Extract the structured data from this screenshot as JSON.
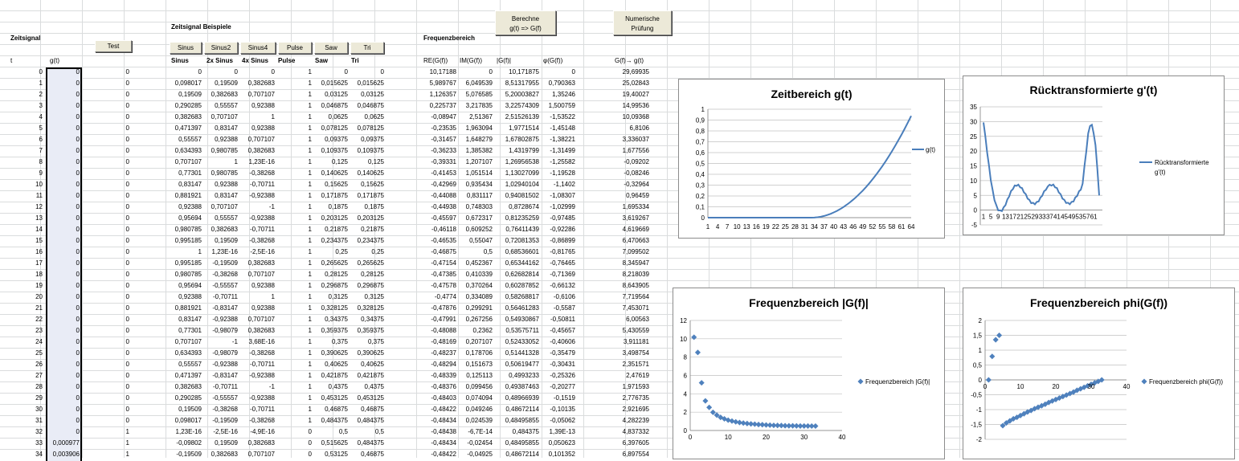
{
  "labels": {
    "zeitsignal": "Zeitsignal",
    "zeitsignal_beispiele": "Zeitsignal Beispiele",
    "frequenzbereich": "Frequenzbereich",
    "t_header": "t",
    "g_header": "g(t)"
  },
  "buttons": {
    "test": "Test",
    "sinus": "Sinus",
    "sinus2": "Sinus2",
    "sinus4": "Sinus4",
    "pulse": "Pulse",
    "saw": "Saw",
    "tri": "Tri",
    "berechne_line1": "Berechne",
    "berechne_line2": "g(t) => G(f)",
    "numerische_line1": "Numerische",
    "numerische_line2": "Prüfung"
  },
  "example_headers": [
    "Sinus",
    "2x Sinus",
    "4x Sinus",
    "Pulse",
    "Saw",
    "Tri"
  ],
  "freq_headers": [
    "RE(G(f))",
    "IM(G(f))",
    "|G(f)|",
    "φ(G(f))",
    "G(f)→ g(t)"
  ],
  "rows": [
    [
      "0",
      "0",
      "0",
      "0",
      "0",
      "0",
      "1",
      "0",
      "0",
      "10,17188",
      "0",
      "10,171875",
      "0",
      "29,69935"
    ],
    [
      "1",
      "0",
      "0",
      "0,098017",
      "0,19509",
      "0,382683",
      "1",
      "0,015625",
      "0,015625",
      "5,989767",
      "6,049539",
      "8,51317955",
      "0,790363",
      "25,02843"
    ],
    [
      "2",
      "0",
      "0",
      "0,19509",
      "0,382683",
      "0,707107",
      "1",
      "0,03125",
      "0,03125",
      "1,126357",
      "5,076585",
      "5,20003827",
      "1,35246",
      "19,40027"
    ],
    [
      "3",
      "0",
      "0",
      "0,290285",
      "0,55557",
      "0,92388",
      "1",
      "0,046875",
      "0,046875",
      "0,225737",
      "3,217835",
      "3,22574309",
      "1,500759",
      "14,99536"
    ],
    [
      "4",
      "0",
      "0",
      "0,382683",
      "0,707107",
      "1",
      "1",
      "0,0625",
      "0,0625",
      "-0,08947",
      "2,51367",
      "2,51526139",
      "-1,53522",
      "10,09368"
    ],
    [
      "5",
      "0",
      "0",
      "0,471397",
      "0,83147",
      "0,92388",
      "1",
      "0,078125",
      "0,078125",
      "-0,23535",
      "1,963094",
      "1,9771514",
      "-1,45148",
      "6,8106"
    ],
    [
      "6",
      "0",
      "0",
      "0,55557",
      "0,92388",
      "0,707107",
      "1",
      "0,09375",
      "0,09375",
      "-0,31457",
      "1,648279",
      "1,67802875",
      "-1,38221",
      "3,336037"
    ],
    [
      "7",
      "0",
      "0",
      "0,634393",
      "0,980785",
      "0,382683",
      "1",
      "0,109375",
      "0,109375",
      "-0,36233",
      "1,385382",
      "1,4319799",
      "-1,31499",
      "1,677556"
    ],
    [
      "8",
      "0",
      "0",
      "0,707107",
      "1",
      "1,23E-16",
      "1",
      "0,125",
      "0,125",
      "-0,39331",
      "1,207107",
      "1,26956538",
      "-1,25582",
      "-0,09202"
    ],
    [
      "9",
      "0",
      "0",
      "0,77301",
      "0,980785",
      "-0,38268",
      "1",
      "0,140625",
      "0,140625",
      "-0,41453",
      "1,051514",
      "1,13027099",
      "-1,19528",
      "-0,08246"
    ],
    [
      "10",
      "0",
      "0",
      "0,83147",
      "0,92388",
      "-0,70711",
      "1",
      "0,15625",
      "0,15625",
      "-0,42969",
      "0,935434",
      "1,02940104",
      "-1,1402",
      "-0,32964"
    ],
    [
      "11",
      "0",
      "0",
      "0,881921",
      "0,83147",
      "-0,92388",
      "1",
      "0,171875",
      "0,171875",
      "-0,44088",
      "0,831117",
      "0,94081502",
      "-1,08307",
      "0,96459"
    ],
    [
      "12",
      "0",
      "0",
      "0,92388",
      "0,707107",
      "-1",
      "1",
      "0,1875",
      "0,1875",
      "-0,44938",
      "0,748303",
      "0,8728674",
      "-1,02999",
      "1,695334"
    ],
    [
      "13",
      "0",
      "0",
      "0,95694",
      "0,55557",
      "-0,92388",
      "1",
      "0,203125",
      "0,203125",
      "-0,45597",
      "0,672317",
      "0,81235259",
      "-0,97485",
      "3,619267"
    ],
    [
      "14",
      "0",
      "0",
      "0,980785",
      "0,382683",
      "-0,70711",
      "1",
      "0,21875",
      "0,21875",
      "-0,46118",
      "0,609252",
      "0,76411439",
      "-0,92286",
      "4,619669"
    ],
    [
      "15",
      "0",
      "0",
      "0,995185",
      "0,19509",
      "-0,38268",
      "1",
      "0,234375",
      "0,234375",
      "-0,46535",
      "0,55047",
      "0,72081353",
      "-0,86899",
      "6,470663"
    ],
    [
      "16",
      "0",
      "0",
      "1",
      "1,23E-16",
      "-2,5E-16",
      "1",
      "0,25",
      "0,25",
      "-0,46875",
      "0,5",
      "0,68536601",
      "-0,81765",
      "7,099502"
    ],
    [
      "17",
      "0",
      "0",
      "0,995185",
      "-0,19509",
      "0,382683",
      "1",
      "0,265625",
      "0,265625",
      "-0,47154",
      "0,452367",
      "0,65344162",
      "-0,76465",
      "8,345947"
    ],
    [
      "18",
      "0",
      "0",
      "0,980785",
      "-0,38268",
      "0,707107",
      "1",
      "0,28125",
      "0,28125",
      "-0,47385",
      "0,410339",
      "0,62682814",
      "-0,71369",
      "8,218039"
    ],
    [
      "19",
      "0",
      "0",
      "0,95694",
      "-0,55557",
      "0,92388",
      "1",
      "0,296875",
      "0,296875",
      "-0,47578",
      "0,370264",
      "0,60287852",
      "-0,66132",
      "8,643905"
    ],
    [
      "20",
      "0",
      "0",
      "0,92388",
      "-0,70711",
      "1",
      "1",
      "0,3125",
      "0,3125",
      "-0,4774",
      "0,334089",
      "0,58268817",
      "-0,6106",
      "7,719564"
    ],
    [
      "21",
      "0",
      "0",
      "0,881921",
      "-0,83147",
      "0,92388",
      "1",
      "0,328125",
      "0,328125",
      "-0,47876",
      "0,299291",
      "0,56461283",
      "-0,5587",
      "7,453071"
    ],
    [
      "22",
      "0",
      "0",
      "0,83147",
      "-0,92388",
      "0,707107",
      "1",
      "0,34375",
      "0,34375",
      "-0,47991",
      "0,267256",
      "0,54930867",
      "-0,50811",
      "6,00563"
    ],
    [
      "23",
      "0",
      "0",
      "0,77301",
      "-0,98079",
      "0,382683",
      "1",
      "0,359375",
      "0,359375",
      "-0,48088",
      "0,2362",
      "0,53575711",
      "-0,45657",
      "5,430559"
    ],
    [
      "24",
      "0",
      "0",
      "0,707107",
      "-1",
      "3,68E-16",
      "1",
      "0,375",
      "0,375",
      "-0,48169",
      "0,207107",
      "0,52433052",
      "-0,40606",
      "3,911181"
    ],
    [
      "25",
      "0",
      "0",
      "0,634393",
      "-0,98079",
      "-0,38268",
      "1",
      "0,390625",
      "0,390625",
      "-0,48237",
      "0,178706",
      "0,51441328",
      "-0,35479",
      "3,498754"
    ],
    [
      "26",
      "0",
      "0",
      "0,55557",
      "-0,92388",
      "-0,70711",
      "1",
      "0,40625",
      "0,40625",
      "-0,48294",
      "0,151673",
      "0,50619477",
      "-0,30431",
      "2,351571"
    ],
    [
      "27",
      "0",
      "0",
      "0,471397",
      "-0,83147",
      "-0,92388",
      "1",
      "0,421875",
      "0,421875",
      "-0,48339",
      "0,125113",
      "0,4993233",
      "-0,25326",
      "2,47619"
    ],
    [
      "28",
      "0",
      "0",
      "0,382683",
      "-0,70711",
      "-1",
      "1",
      "0,4375",
      "0,4375",
      "-0,48376",
      "0,099456",
      "0,49387463",
      "-0,20277",
      "1,971593"
    ],
    [
      "29",
      "0",
      "0",
      "0,290285",
      "-0,55557",
      "-0,92388",
      "1",
      "0,453125",
      "0,453125",
      "-0,48403",
      "0,074094",
      "0,48966939",
      "-0,1519",
      "2,776735"
    ],
    [
      "30",
      "0",
      "0",
      "0,19509",
      "-0,38268",
      "-0,70711",
      "1",
      "0,46875",
      "0,46875",
      "-0,48422",
      "0,049246",
      "0,48672114",
      "-0,10135",
      "2,921695"
    ],
    [
      "31",
      "0",
      "0",
      "0,098017",
      "-0,19509",
      "-0,38268",
      "1",
      "0,484375",
      "0,484375",
      "-0,48434",
      "0,024539",
      "0,48495855",
      "-0,05062",
      "4,282239"
    ],
    [
      "32",
      "0",
      "1",
      "1,23E-16",
      "-2,5E-16",
      "-4,9E-16",
      "0",
      "0,5",
      "0,5",
      "-0,48438",
      "-6,7E-14",
      "0,484375",
      "1,39E-13",
      "4,837332"
    ],
    [
      "33",
      "0,000977",
      "1",
      "-0,09802",
      "0,19509",
      "0,382683",
      "0",
      "0,515625",
      "0,484375",
      "-0,48434",
      "-0,02454",
      "0,48495855",
      "0,050623",
      "6,397605"
    ],
    [
      "34",
      "0,003906",
      "1",
      "-0,19509",
      "0,382683",
      "0,707107",
      "0",
      "0,53125",
      "0,46875",
      "-0,48422",
      "-0,04925",
      "0,48672114",
      "0,101352",
      "6,897554"
    ]
  ],
  "chart_data": [
    {
      "type": "line",
      "title": "Zeitbereich g(t)",
      "legend": "right",
      "series": [
        {
          "name": "g(t)",
          "color": "#4a7ebb"
        }
      ],
      "x_start": 1,
      "x_end": 64,
      "x_tick_labels": [
        "1",
        "4",
        "7",
        "10",
        "13",
        "16",
        "19",
        "22",
        "25",
        "28",
        "31",
        "34",
        "37",
        "40",
        "43",
        "46",
        "49",
        "52",
        "55",
        "58",
        "61",
        "64"
      ],
      "y_tick_labels": [
        "0",
        "0,1",
        "0,2",
        "0,3",
        "0,4",
        "0,5",
        "0,6",
        "0,7",
        "0,8",
        "0,9",
        "1"
      ],
      "ylim": [
        0,
        1
      ],
      "formula": "y = 0 for x<=33, y = ((x-33)/32)^2 otherwise"
    },
    {
      "type": "line",
      "title": "Rücktransformierte g'(t)",
      "legend": "right",
      "series": [
        {
          "name_line1": "Rücktransformierte",
          "name_line2": "g'(t)",
          "color": "#4a7ebb",
          "values": [
            29.7,
            25.03,
            19.4,
            15.0,
            10.09,
            6.81,
            3.34,
            1.68,
            -0.09,
            -0.08,
            -0.33,
            0.96,
            1.7,
            3.62,
            4.62,
            6.47,
            7.1,
            8.35,
            8.22,
            8.64,
            7.72,
            7.45,
            6.01,
            5.43,
            3.91,
            3.5,
            2.35,
            2.48,
            1.97,
            2.78,
            2.92,
            4.28,
            4.84,
            6.4,
            6.9,
            8.0,
            8.6,
            8.3,
            8.7,
            7.7,
            7.5,
            6.0,
            5.4,
            3.9,
            3.5,
            2.4,
            2.5,
            2.0,
            2.8,
            2.9,
            4.3,
            4.8,
            6.4,
            6.9,
            9.0,
            15.0,
            20.0,
            26.0,
            28.5,
            28.9,
            26.0,
            22.0,
            14.0,
            5.0
          ]
        }
      ],
      "x_tick_labels": [
        "1",
        "5",
        "9",
        "13",
        "17",
        "21",
        "25",
        "29",
        "33",
        "37",
        "41",
        "45",
        "49",
        "53",
        "57",
        "61"
      ],
      "y_tick_labels": [
        "-5",
        "0",
        "5",
        "10",
        "15",
        "20",
        "25",
        "30",
        "35"
      ],
      "ylim": [
        -5,
        35
      ]
    },
    {
      "type": "scatter",
      "title": "Frequenzbereich |G(f)|",
      "legend": "right",
      "series": [
        {
          "name": "Frequenzbereich |G(f)|",
          "color": "#4f81bd",
          "values": [
            10.17,
            8.51,
            5.2,
            3.23,
            2.52,
            1.98,
            1.68,
            1.43,
            1.27,
            1.13,
            1.03,
            0.94,
            0.87,
            0.81,
            0.76,
            0.72,
            0.69,
            0.65,
            0.63,
            0.6,
            0.58,
            0.56,
            0.55,
            0.54,
            0.52,
            0.51,
            0.51,
            0.5,
            0.49,
            0.49,
            0.49,
            0.48,
            0.48
          ]
        }
      ],
      "x_start": 1,
      "x_tick_labels": [
        "0",
        "10",
        "20",
        "30",
        "40"
      ],
      "y_tick_labels": [
        "0",
        "2",
        "4",
        "6",
        "8",
        "10",
        "12"
      ],
      "xlim": [
        0,
        40
      ],
      "ylim": [
        0,
        12
      ]
    },
    {
      "type": "scatter",
      "title": "Frequenzbereich phi(G(f))",
      "legend": "right",
      "series": [
        {
          "name": "Frequenzbereich phi(G(f))",
          "color": "#4f81bd",
          "values": [
            0,
            0.79,
            1.35,
            1.5,
            -1.54,
            -1.45,
            -1.38,
            -1.31,
            -1.26,
            -1.2,
            -1.14,
            -1.08,
            -1.03,
            -0.97,
            -0.92,
            -0.87,
            -0.82,
            -0.76,
            -0.71,
            -0.66,
            -0.61,
            -0.56,
            -0.51,
            -0.46,
            -0.41,
            -0.35,
            -0.3,
            -0.25,
            -0.2,
            -0.15,
            -0.1,
            -0.05,
            0
          ]
        }
      ],
      "x_start": 1,
      "x_tick_labels": [
        "0",
        "10",
        "20",
        "30",
        "40"
      ],
      "y_tick_labels": [
        "-2",
        "-1,5",
        "-1",
        "-0,5",
        "0",
        "0,5",
        "1",
        "1,5",
        "2"
      ],
      "xlim": [
        0,
        40
      ],
      "ylim": [
        -2,
        2
      ]
    }
  ]
}
